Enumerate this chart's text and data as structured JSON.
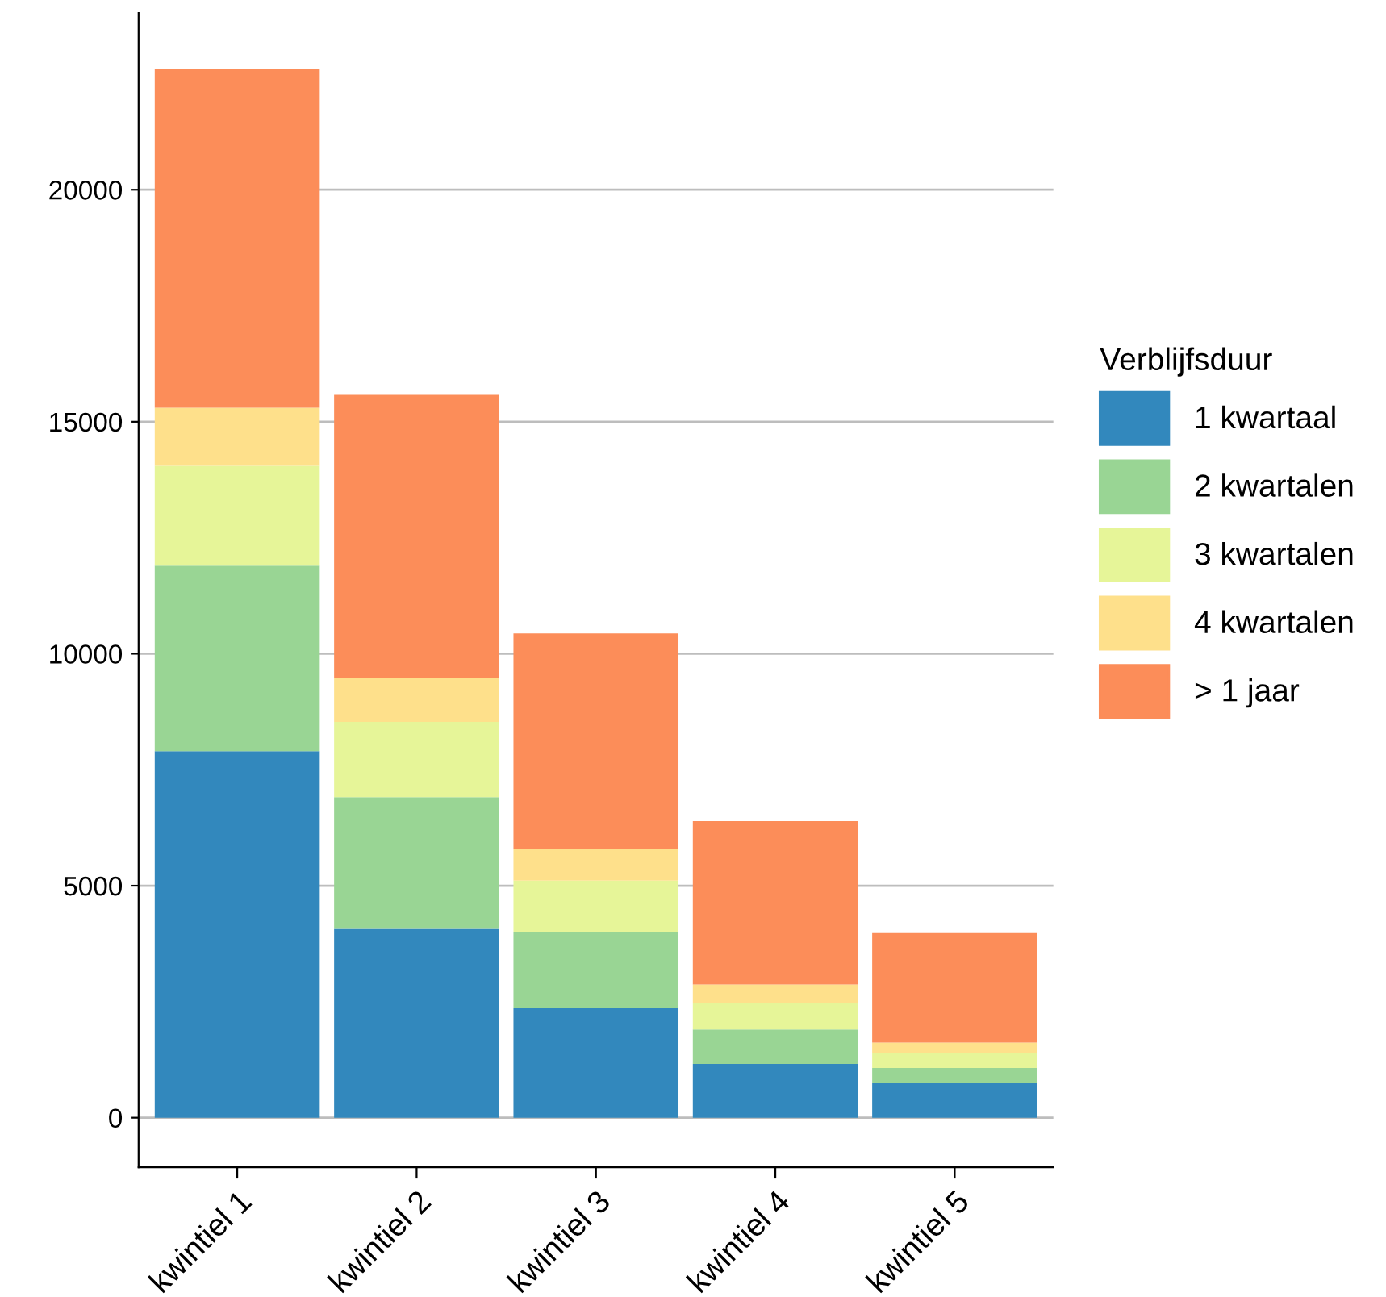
{
  "chart_data": {
    "type": "bar",
    "stacked": true,
    "legend_title": "Verblijfsduur",
    "legend": "right",
    "grid": "y",
    "categories": [
      "kwintiel 1",
      "kwintiel 2",
      "kwintiel 3",
      "kwintiel 4",
      "kwintiel 5"
    ],
    "series": [
      {
        "name": "1 kwartaal",
        "color": "#3288bd",
        "values": [
          7900,
          4070,
          2360,
          1160,
          740
        ]
      },
      {
        "name": "2 kwartalen",
        "color": "#99d594",
        "values": [
          4000,
          2840,
          1650,
          740,
          330
        ]
      },
      {
        "name": "3 kwartalen",
        "color": "#e6f598",
        "values": [
          2150,
          1620,
          1100,
          580,
          320
        ]
      },
      {
        "name": "4 kwartalen",
        "color": "#fee08b",
        "values": [
          1250,
          940,
          680,
          390,
          230
        ]
      },
      {
        "name": "> 1 jaar",
        "color": "#fc8d59",
        "values": [
          7300,
          6110,
          4650,
          3520,
          2360
        ]
      }
    ],
    "ylim": [
      -1070,
      23810
    ],
    "yticks": [
      0,
      5000,
      10000,
      15000,
      20000
    ]
  }
}
